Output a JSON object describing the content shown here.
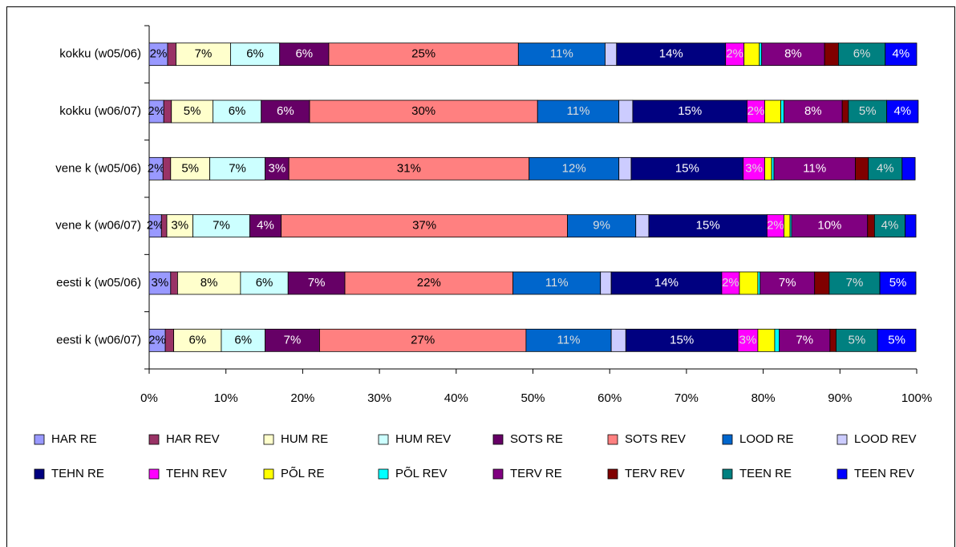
{
  "chart_data": {
    "type": "stacked-barh",
    "categories": [
      "kokku (w05/06)",
      "kokku (w06/07)",
      "vene k (w05/06)",
      "vene k (w06/07)",
      "eesti k (w05/06)",
      "eesti k (w06/07)"
    ],
    "xlim": [
      0,
      100
    ],
    "xticks": [
      {
        "value": 0,
        "label": "0%"
      },
      {
        "value": 10,
        "label": "10%"
      },
      {
        "value": 20,
        "label": "20%"
      },
      {
        "value": 30,
        "label": "30%"
      },
      {
        "value": 40,
        "label": "40%"
      },
      {
        "value": 50,
        "label": "50%"
      },
      {
        "value": 60,
        "label": "60%"
      },
      {
        "value": 70,
        "label": "70%"
      },
      {
        "value": 80,
        "label": "80%"
      },
      {
        "value": 90,
        "label": "90%"
      },
      {
        "value": 100,
        "label": "100%"
      }
    ],
    "legend": "bottom",
    "series": [
      {
        "name": "HAR RE",
        "color": "#9999ff",
        "values": [
          2.4,
          1.9,
          1.8,
          1.6,
          2.8,
          2.1
        ],
        "value_labels": [
          "2%",
          "2%",
          "2%",
          "2%",
          "3%",
          "2%"
        ]
      },
      {
        "name": "HAR REV",
        "color": "#993366",
        "values": [
          1.1,
          1.0,
          1.0,
          0.7,
          0.9,
          1.1
        ],
        "value_labels": [
          null,
          null,
          null,
          null,
          null,
          null
        ]
      },
      {
        "name": "HUM RE",
        "color": "#ffffcc",
        "values": [
          7.1,
          5.4,
          5.1,
          3.4,
          8.2,
          6.2
        ],
        "value_labels": [
          "7%",
          "5%",
          "5%",
          "3%",
          "8%",
          "6%"
        ]
      },
      {
        "name": "HUM REV",
        "color": "#ccffff",
        "values": [
          6.4,
          6.3,
          7.2,
          7.4,
          6.2,
          5.7
        ],
        "value_labels": [
          "6%",
          "6%",
          "7%",
          "7%",
          "6%",
          "6%"
        ]
      },
      {
        "name": "SOTS RE",
        "color": "#660066",
        "values": [
          6.4,
          6.3,
          3.1,
          4.1,
          7.4,
          7.1
        ],
        "value_labels": [
          "6%",
          "6%",
          "3%",
          "4%",
          "7%",
          "7%"
        ]
      },
      {
        "name": "SOTS REV",
        "color": "#ff8080",
        "values": [
          24.7,
          29.7,
          31.3,
          37.3,
          21.9,
          26.9
        ],
        "value_labels": [
          "25%",
          "30%",
          "31%",
          "37%",
          "22%",
          "27%"
        ]
      },
      {
        "name": "LOOD RE",
        "color": "#0066cc",
        "values": [
          11.3,
          10.6,
          11.7,
          8.9,
          11.4,
          11.1
        ],
        "value_labels": [
          "11%",
          "11%",
          "12%",
          "9%",
          "11%",
          "11%"
        ]
      },
      {
        "name": "LOOD REV",
        "color": "#ccccff",
        "values": [
          1.5,
          1.8,
          1.6,
          1.7,
          1.4,
          1.9
        ],
        "value_labels": [
          null,
          null,
          null,
          null,
          null,
          null
        ]
      },
      {
        "name": "TEHN RE",
        "color": "#000080",
        "values": [
          14.2,
          14.9,
          14.6,
          15.4,
          14.4,
          14.6
        ],
        "value_labels": [
          "14%",
          "15%",
          "15%",
          "15%",
          "14%",
          "15%"
        ]
      },
      {
        "name": "TEHN REV",
        "color": "#ff00ff",
        "values": [
          2.4,
          2.3,
          2.8,
          2.2,
          2.3,
          2.6
        ],
        "value_labels": [
          "2%",
          "2%",
          "3%",
          "2%",
          "2%",
          "3%"
        ]
      },
      {
        "name": "PÕL RE",
        "color": "#ffff00",
        "values": [
          2.0,
          2.1,
          0.9,
          0.8,
          2.4,
          2.2
        ],
        "value_labels": [
          null,
          null,
          null,
          null,
          null,
          null
        ]
      },
      {
        "name": "PÕL REV",
        "color": "#00ffff",
        "values": [
          0.3,
          0.4,
          0.3,
          0.2,
          0.3,
          0.6
        ],
        "value_labels": [
          null,
          null,
          null,
          null,
          null,
          null
        ]
      },
      {
        "name": "TERV RE",
        "color": "#800080",
        "values": [
          8.2,
          7.6,
          10.6,
          9.9,
          7.1,
          6.6
        ],
        "value_labels": [
          "8%",
          "8%",
          "11%",
          "10%",
          "7%",
          "7%"
        ]
      },
      {
        "name": "TERV REV",
        "color": "#800000",
        "values": [
          1.8,
          0.8,
          1.7,
          0.9,
          1.9,
          0.8
        ],
        "value_labels": [
          null,
          null,
          null,
          null,
          null,
          null
        ]
      },
      {
        "name": "TEEN RE",
        "color": "#008080",
        "values": [
          6.1,
          5.0,
          4.4,
          4.0,
          6.6,
          5.4
        ],
        "value_labels": [
          "6%",
          "5%",
          "4%",
          "4%",
          "7%",
          "5%"
        ]
      },
      {
        "name": "TEEN REV",
        "color": "#0000ff",
        "values": [
          4.1,
          4.1,
          1.7,
          1.4,
          4.7,
          5.0
        ],
        "value_labels": [
          "4%",
          "4%",
          null,
          null,
          "5%",
          "5%"
        ]
      }
    ]
  }
}
